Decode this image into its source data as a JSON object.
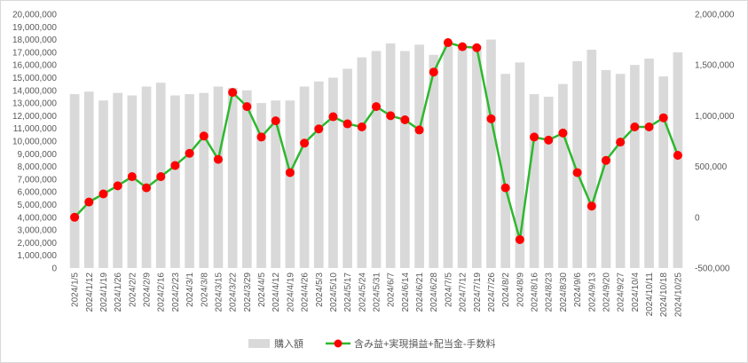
{
  "chart_data": {
    "type": "bar+line",
    "categories": [
      "2024/1/5",
      "2024/1/12",
      "2024/1/19",
      "2024/1/26",
      "2024/2/2",
      "2024/2/9",
      "2024/2/16",
      "2024/2/23",
      "2024/3/1",
      "2024/3/8",
      "2024/3/15",
      "2024/3/22",
      "2024/3/29",
      "2024/4/5",
      "2024/4/12",
      "2024/4/19",
      "2024/4/26",
      "2024/5/3",
      "2024/5/10",
      "2024/5/17",
      "2024/5/24",
      "2024/5/31",
      "2024/6/7",
      "2024/6/14",
      "2024/6/21",
      "2024/6/28",
      "2024/7/5",
      "2024/7/12",
      "2024/7/19",
      "2024/7/26",
      "2024/8/2",
      "2024/8/9",
      "2024/8/16",
      "2024/8/23",
      "2024/8/30",
      "2024/9/6",
      "2024/9/13",
      "2024/9/20",
      "2024/9/27",
      "2024/10/4",
      "2024/10/11",
      "2024/10/18",
      "2024/10/25"
    ],
    "y_left": {
      "ylim": [
        0,
        20000000
      ],
      "ticks": [
        "0",
        "1,000,000",
        "2,000,000",
        "3,000,000",
        "4,000,000",
        "5,000,000",
        "6,000,000",
        "7,000,000",
        "8,000,000",
        "9,000,000",
        "10,000,000",
        "11,000,000",
        "12,000,000",
        "13,000,000",
        "14,000,000",
        "15,000,000",
        "16,000,000",
        "17,000,000",
        "18,000,000",
        "19,000,000",
        "20,000,000"
      ]
    },
    "y_right": {
      "ylim": [
        -500000,
        2000000
      ],
      "ticks": [
        "-500,000",
        "0",
        "500,000",
        "1,000,000",
        "1,500,000",
        "2,000,000"
      ]
    },
    "grid": false,
    "legend": "bottom",
    "series": [
      {
        "name": "購入額",
        "kind": "bar",
        "axis": "left",
        "color": "#d9d9d9",
        "values": [
          13700000,
          13900000,
          13200000,
          13800000,
          13600000,
          14300000,
          14600000,
          13600000,
          13700000,
          13800000,
          14300000,
          14200000,
          14000000,
          13000000,
          13200000,
          13200000,
          14300000,
          14700000,
          15000000,
          15700000,
          16600000,
          17100000,
          17700000,
          17100000,
          17600000,
          16800000,
          17500000,
          17500000,
          17500000,
          18000000,
          15300000,
          16200000,
          13700000,
          13500000,
          14500000,
          16300000,
          17200000,
          15600000,
          15300000,
          16000000,
          16500000,
          15100000,
          17000000
        ]
      },
      {
        "name": "含み益+実現損益+配当金-手数料",
        "kind": "line",
        "axis": "right",
        "color": "#2eb82e",
        "marker_color": "#ff0000",
        "values": [
          0,
          150000,
          230000,
          310000,
          400000,
          290000,
          400000,
          510000,
          630000,
          800000,
          570000,
          1230000,
          1090000,
          790000,
          950000,
          440000,
          730000,
          870000,
          990000,
          920000,
          890000,
          1090000,
          1000000,
          960000,
          860000,
          1430000,
          1720000,
          1680000,
          1670000,
          970000,
          290000,
          -220000,
          790000,
          760000,
          830000,
          440000,
          110000,
          560000,
          740000,
          890000,
          890000,
          980000,
          610000
        ]
      }
    ]
  }
}
